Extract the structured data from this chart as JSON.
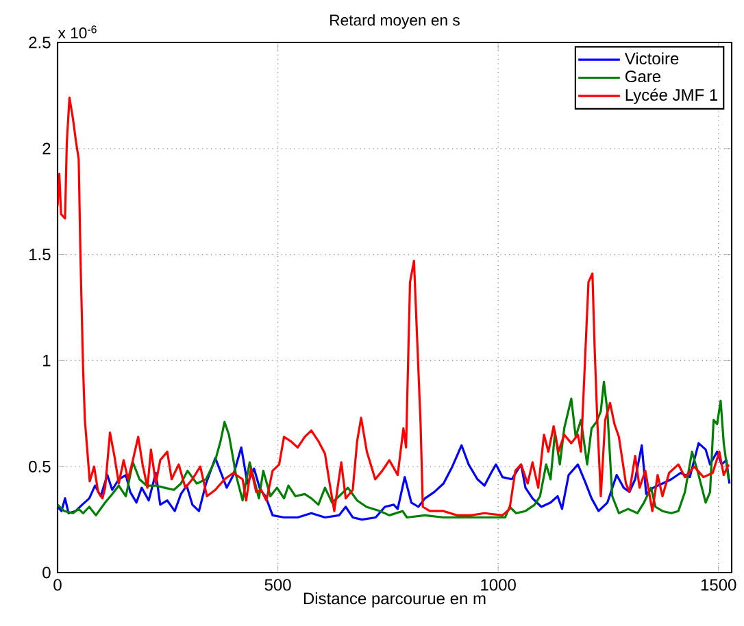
{
  "chart_data": {
    "type": "line",
    "title": "Retard moyen en s",
    "xlabel": "Distance parcourue en m",
    "annotations": [
      "x 10$^{-6}$"
    ],
    "xlim": [
      0,
      1530
    ],
    "xticks": [
      0,
      500,
      1000,
      1500
    ],
    "ylim": [
      0,
      2.5
    ],
    "yticks": [
      0,
      0.5,
      1,
      1.5,
      2,
      2.5
    ],
    "grid": true,
    "legend": "top right",
    "series": [
      {
        "name": "Victoire",
        "color": "#0000ff",
        "x": [
          0,
          9,
          17,
          25,
          41,
          56,
          72,
          85,
          98,
          113,
          124,
          139,
          155,
          165,
          179,
          191,
          207,
          223,
          233,
          249,
          266,
          280,
          293,
          306,
          321,
          337,
          358,
          373,
          384,
          399,
          417,
          431,
          446,
          460,
          472,
          488,
          514,
          545,
          576,
          607,
          639,
          654,
          670,
          691,
          722,
          743,
          763,
          772,
          788,
          803,
          819,
          834,
          855,
          876,
          896,
          917,
          933,
          953,
          969,
          984,
          995,
          1010,
          1031,
          1052,
          1062,
          1078,
          1098,
          1119,
          1135,
          1145,
          1160,
          1181,
          1197,
          1212,
          1228,
          1248,
          1269,
          1285,
          1298,
          1311,
          1326,
          1336,
          1352,
          1373,
          1393,
          1414,
          1435,
          1455,
          1471,
          1481,
          1497,
          1507,
          1518,
          1525
        ],
        "values": [
          0.31,
          0.29,
          0.35,
          0.28,
          0.29,
          0.32,
          0.35,
          0.41,
          0.36,
          0.46,
          0.39,
          0.44,
          0.46,
          0.38,
          0.33,
          0.4,
          0.34,
          0.47,
          0.32,
          0.34,
          0.29,
          0.37,
          0.41,
          0.32,
          0.29,
          0.42,
          0.54,
          0.46,
          0.4,
          0.46,
          0.59,
          0.42,
          0.49,
          0.39,
          0.36,
          0.27,
          0.26,
          0.26,
          0.28,
          0.26,
          0.27,
          0.31,
          0.26,
          0.25,
          0.26,
          0.31,
          0.32,
          0.3,
          0.45,
          0.33,
          0.31,
          0.35,
          0.38,
          0.42,
          0.5,
          0.6,
          0.51,
          0.44,
          0.41,
          0.47,
          0.51,
          0.45,
          0.44,
          0.51,
          0.4,
          0.35,
          0.31,
          0.33,
          0.36,
          0.3,
          0.46,
          0.51,
          0.43,
          0.35,
          0.29,
          0.33,
          0.46,
          0.4,
          0.38,
          0.44,
          0.6,
          0.37,
          0.4,
          0.42,
          0.44,
          0.47,
          0.45,
          0.61,
          0.58,
          0.51,
          0.57,
          0.51,
          0.53,
          0.42
        ]
      },
      {
        "name": "Gare",
        "color": "#008000",
        "x": [
          0,
          15,
          35,
          48,
          58,
          72,
          87,
          108,
          124,
          139,
          155,
          171,
          186,
          202,
          223,
          243,
          264,
          280,
          295,
          316,
          337,
          358,
          370,
          379,
          389,
          405,
          420,
          436,
          446,
          457,
          467,
          483,
          498,
          514,
          524,
          540,
          561,
          576,
          592,
          607,
          623,
          639,
          659,
          680,
          701,
          732,
          753,
          783,
          793,
          834,
          876,
          917,
          959,
          1016,
          1026,
          1041,
          1062,
          1083,
          1095,
          1109,
          1119,
          1129,
          1140,
          1150,
          1166,
          1176,
          1188,
          1202,
          1212,
          1223,
          1233,
          1240,
          1248,
          1259,
          1274,
          1295,
          1316,
          1331,
          1347,
          1357,
          1373,
          1393,
          1409,
          1424,
          1440,
          1455,
          1471,
          1481,
          1489,
          1497,
          1505,
          1512,
          1523
        ],
        "values": [
          0.32,
          0.29,
          0.28,
          0.3,
          0.28,
          0.31,
          0.27,
          0.33,
          0.37,
          0.41,
          0.36,
          0.52,
          0.44,
          0.41,
          0.41,
          0.4,
          0.39,
          0.42,
          0.48,
          0.42,
          0.44,
          0.53,
          0.62,
          0.71,
          0.65,
          0.46,
          0.34,
          0.52,
          0.44,
          0.35,
          0.48,
          0.36,
          0.4,
          0.35,
          0.41,
          0.36,
          0.37,
          0.35,
          0.32,
          0.4,
          0.33,
          0.36,
          0.4,
          0.34,
          0.31,
          0.29,
          0.27,
          0.29,
          0.26,
          0.27,
          0.26,
          0.26,
          0.26,
          0.26,
          0.31,
          0.28,
          0.29,
          0.32,
          0.36,
          0.51,
          0.44,
          0.66,
          0.51,
          0.68,
          0.82,
          0.64,
          0.72,
          0.51,
          0.68,
          0.71,
          0.76,
          0.9,
          0.76,
          0.36,
          0.28,
          0.3,
          0.28,
          0.33,
          0.4,
          0.31,
          0.29,
          0.28,
          0.29,
          0.38,
          0.57,
          0.46,
          0.33,
          0.38,
          0.72,
          0.7,
          0.81,
          0.61,
          0.44
        ]
      },
      {
        "name": "Lycée JMF 1",
        "color": "#ff0000",
        "x": [
          0,
          4,
          8,
          17,
          21,
          27,
          35,
          42,
          48,
          52,
          58,
          62,
          67,
          73,
          83,
          92,
          102,
          108,
          119,
          129,
          139,
          150,
          160,
          171,
          183,
          193,
          204,
          212,
          223,
          233,
          249,
          259,
          275,
          290,
          306,
          324,
          339,
          358,
          379,
          399,
          420,
          428,
          439,
          451,
          462,
          474,
          488,
          503,
          514,
          529,
          545,
          561,
          576,
          592,
          607,
          616,
          628,
          644,
          654,
          670,
          680,
          689,
          702,
          721,
          737,
          753,
          772,
          785,
          791,
          800,
          809,
          824,
          829,
          845,
          876,
          907,
          938,
          969,
          1010,
          1026,
          1039,
          1052,
          1067,
          1078,
          1091,
          1104,
          1114,
          1126,
          1137,
          1150,
          1166,
          1181,
          1188,
          1205,
          1214,
          1219,
          1225,
          1233,
          1243,
          1254,
          1264,
          1274,
          1290,
          1298,
          1311,
          1321,
          1334,
          1350,
          1362,
          1373,
          1388,
          1409,
          1424,
          1445,
          1466,
          1487,
          1502,
          1512,
          1523
        ],
        "values": [
          1.73,
          1.88,
          1.69,
          1.67,
          2.03,
          2.24,
          2.14,
          2.03,
          1.95,
          1.49,
          0.96,
          0.72,
          0.59,
          0.43,
          0.5,
          0.38,
          0.35,
          0.4,
          0.66,
          0.55,
          0.42,
          0.53,
          0.44,
          0.53,
          0.64,
          0.51,
          0.4,
          0.58,
          0.42,
          0.53,
          0.57,
          0.44,
          0.51,
          0.4,
          0.44,
          0.5,
          0.36,
          0.39,
          0.44,
          0.47,
          0.44,
          0.34,
          0.49,
          0.38,
          0.39,
          0.34,
          0.48,
          0.51,
          0.64,
          0.62,
          0.59,
          0.64,
          0.67,
          0.62,
          0.56,
          0.44,
          0.29,
          0.52,
          0.35,
          0.39,
          0.62,
          0.73,
          0.57,
          0.44,
          0.48,
          0.53,
          0.46,
          0.68,
          0.59,
          1.37,
          1.47,
          0.7,
          0.31,
          0.29,
          0.29,
          0.27,
          0.27,
          0.28,
          0.27,
          0.3,
          0.48,
          0.51,
          0.42,
          0.52,
          0.4,
          0.65,
          0.57,
          0.69,
          0.57,
          0.65,
          0.61,
          0.65,
          0.57,
          1.37,
          1.41,
          1.06,
          0.72,
          0.36,
          0.72,
          0.8,
          0.7,
          0.64,
          0.42,
          0.38,
          0.55,
          0.4,
          0.48,
          0.29,
          0.46,
          0.36,
          0.47,
          0.51,
          0.45,
          0.5,
          0.45,
          0.47,
          0.57,
          0.46,
          0.51
        ]
      }
    ]
  }
}
